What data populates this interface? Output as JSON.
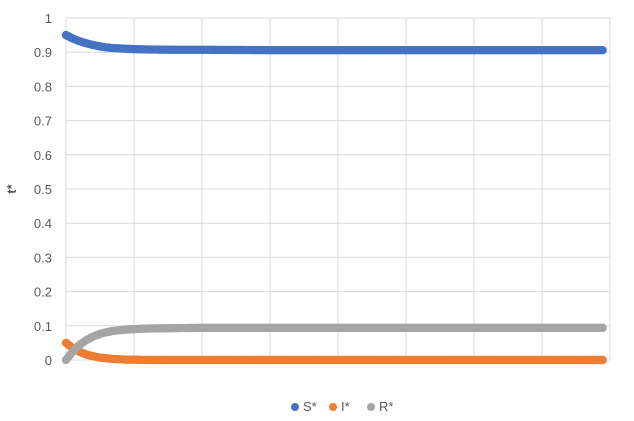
{
  "chart_data": {
    "type": "scatter",
    "title": "",
    "xlabel": "",
    "ylabel": "t*",
    "ylim": [
      0,
      1
    ],
    "yticks": [
      "0",
      "0.1",
      "0.2",
      "0.3",
      "0.4",
      "0.5",
      "0.6",
      "0.7",
      "0.8",
      "0.9",
      "1"
    ],
    "grid": true,
    "legend": "bottom",
    "x": [
      0,
      5,
      10,
      15,
      20,
      25,
      30,
      35,
      40,
      45,
      50,
      60,
      80,
      100,
      150,
      200,
      250,
      300,
      350,
      400
    ],
    "series": [
      {
        "name": "S*",
        "color": "#4472C4",
        "values": [
          0.95,
          0.94,
          0.932,
          0.926,
          0.921,
          0.917,
          0.914,
          0.912,
          0.911,
          0.91,
          0.909,
          0.908,
          0.907,
          0.907,
          0.906,
          0.906,
          0.906,
          0.906,
          0.906,
          0.906
        ]
      },
      {
        "name": "I*",
        "color": "#ED7D31",
        "values": [
          0.05,
          0.035,
          0.024,
          0.016,
          0.011,
          0.007,
          0.005,
          0.003,
          0.002,
          0.001,
          0.001,
          0.0,
          0.0,
          0.0,
          0.0,
          0.0,
          0.0,
          0.0,
          0.0,
          0.0
        ]
      },
      {
        "name": "R*",
        "color": "#A5A5A5",
        "values": [
          0.0,
          0.025,
          0.044,
          0.058,
          0.068,
          0.076,
          0.081,
          0.085,
          0.087,
          0.089,
          0.09,
          0.092,
          0.093,
          0.094,
          0.094,
          0.094,
          0.094,
          0.094,
          0.094,
          0.094
        ]
      }
    ]
  }
}
